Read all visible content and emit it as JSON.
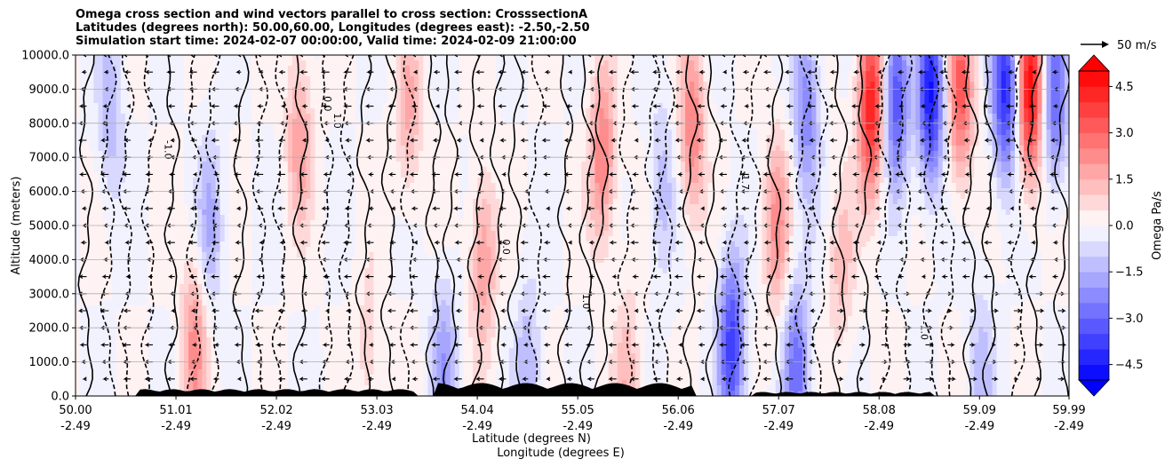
{
  "chart_data": {
    "type": "heatmap",
    "title_lines": [
      "Omega cross section and wind vectors parallel to cross section: CrosssectionA",
      "Latitudes (degrees north): 50.00,60.00, Longitudes (degrees east): -2.50,-2.50",
      "Simulation start time: 2024-02-07 00:00:00, Valid time: 2024-02-09 21:00:00"
    ],
    "ylabel": "Altitude (meters)",
    "xlabel_lat": "Latitude (degrees N)",
    "xlabel_lon": "Longitude (degrees E)",
    "ylim": [
      0,
      10000
    ],
    "xlim": [
      50.0,
      59.99
    ],
    "y_ticks": [
      "0.0",
      "1000.0",
      "2000.0",
      "3000.0",
      "4000.0",
      "5000.0",
      "6000.0",
      "7000.0",
      "8000.0",
      "9000.0",
      "10000.0"
    ],
    "x_ticks": [
      {
        "lat": "50.00",
        "lon": "-2.49"
      },
      {
        "lat": "51.01",
        "lon": "-2.49"
      },
      {
        "lat": "52.02",
        "lon": "-2.49"
      },
      {
        "lat": "53.03",
        "lon": "-2.49"
      },
      {
        "lat": "54.04",
        "lon": "-2.49"
      },
      {
        "lat": "55.05",
        "lon": "-2.49"
      },
      {
        "lat": "56.06",
        "lon": "-2.49"
      },
      {
        "lat": "57.07",
        "lon": "-2.49"
      },
      {
        "lat": "58.08",
        "lon": "-2.49"
      },
      {
        "lat": "59.09",
        "lon": "-2.49"
      },
      {
        "lat": "59.99",
        "lon": "-2.49"
      }
    ],
    "colorbar": {
      "label": "Omega Pa/s",
      "min": -5.0,
      "max": 5.0,
      "step": 0.5,
      "extend": "both",
      "tick_labels": [
        "−4.5",
        "−3.0",
        "−1.5",
        "0.0",
        "1.5",
        "3.0",
        "4.5"
      ],
      "tick_values": [
        -4.5,
        -3.0,
        -1.5,
        0.0,
        1.5,
        3.0,
        4.5
      ]
    },
    "wind_key_label": "50 m/s",
    "contour_labels": [
      "0.0",
      "1.0",
      "-1.0",
      "-1.7",
      "0.0",
      "1.0",
      "-1.0"
    ],
    "omega_features": [
      {
        "lat": 50.35,
        "alt": 8200,
        "omega": -1.4
      },
      {
        "lat": 51.2,
        "alt": 1500,
        "omega": 2.2
      },
      {
        "lat": 51.35,
        "alt": 5000,
        "omega": -1.6
      },
      {
        "lat": 52.25,
        "alt": 7600,
        "omega": 1.8
      },
      {
        "lat": 52.95,
        "alt": 1200,
        "omega": 0.9
      },
      {
        "lat": 53.35,
        "alt": 8300,
        "omega": 1.6
      },
      {
        "lat": 53.7,
        "alt": 900,
        "omega": -1.8
      },
      {
        "lat": 54.1,
        "alt": 4000,
        "omega": 2.0
      },
      {
        "lat": 54.55,
        "alt": 700,
        "omega": -1.5
      },
      {
        "lat": 55.3,
        "alt": 7000,
        "omega": 2.6
      },
      {
        "lat": 55.55,
        "alt": 500,
        "omega": 1.4
      },
      {
        "lat": 55.9,
        "alt": 6000,
        "omega": -1.3
      },
      {
        "lat": 56.2,
        "alt": 7800,
        "omega": 2.5
      },
      {
        "lat": 56.6,
        "alt": 1500,
        "omega": -3.8
      },
      {
        "lat": 57.05,
        "alt": 5000,
        "omega": 2.1
      },
      {
        "lat": 57.35,
        "alt": 8400,
        "omega": -2.4
      },
      {
        "lat": 57.25,
        "alt": 800,
        "omega": -2.8
      },
      {
        "lat": 57.7,
        "alt": 3800,
        "omega": 1.2
      },
      {
        "lat": 58.0,
        "alt": 8500,
        "omega": 4.5
      },
      {
        "lat": 58.25,
        "alt": 8800,
        "omega": -3.5
      },
      {
        "lat": 58.6,
        "alt": 8800,
        "omega": -4.5
      },
      {
        "lat": 58.9,
        "alt": 8900,
        "omega": 3.2
      },
      {
        "lat": 59.35,
        "alt": 9000,
        "omega": -4.2
      },
      {
        "lat": 59.6,
        "alt": 8900,
        "omega": 4.8
      },
      {
        "lat": 59.85,
        "alt": 8800,
        "omega": -3.0
      },
      {
        "lat": 59.1,
        "alt": 700,
        "omega": -1.2
      }
    ]
  }
}
